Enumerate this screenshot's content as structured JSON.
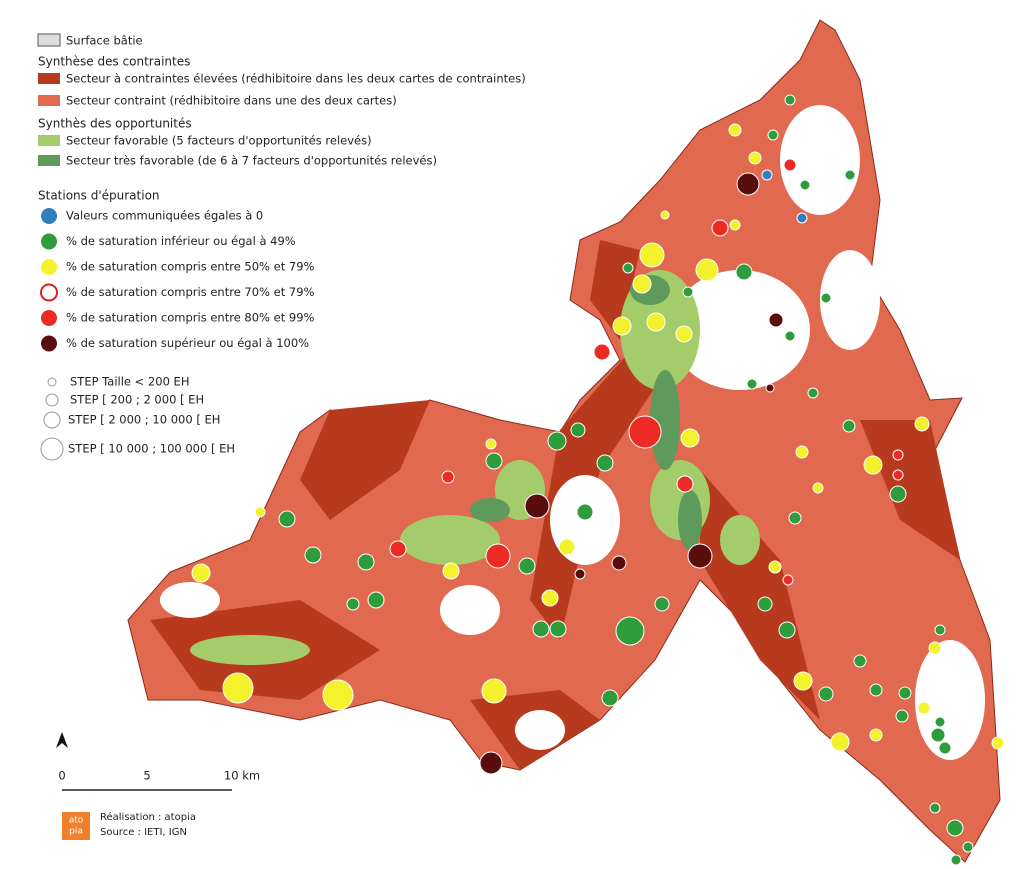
{
  "legend": {
    "built": "Surface bâtie",
    "constraints": {
      "title": "Synthèse des contraintes",
      "items": [
        "Secteur à contraintes élevées (rédhibitoire dans les deux cartes de contraintes)",
        "Secteur contraint (rédhibitoire dans une des deux cartes)"
      ]
    },
    "opportunities": {
      "title": "Synthès des opportunités",
      "items": [
        "Secteur favorable (5 facteurs d'opportunités relevés)",
        "Secteur très favorable (de 6 à 7 facteurs d'opportunités relevés)"
      ]
    },
    "stations": {
      "title": "Stations d'épuration",
      "items": [
        "Valeurs communiquées égales à 0",
        "% de saturation inférieur ou égal à 49%",
        "% de saturation compris entre 50% et 79%",
        "% de saturation compris entre 70% et 79%",
        "% de saturation compris entre 80% et 99%",
        "% de saturation supérieur ou égal à 100%"
      ]
    },
    "sizes": [
      "STEP Taille < 200 EH",
      "STEP [ 200 ; 2 000 [ EH",
      "STEP [ 2 000 ; 10 000 [ EH",
      "STEP [ 10 000 ; 100 000 [ EH"
    ]
  },
  "scale": {
    "labels": [
      "0",
      "5",
      "10 km"
    ]
  },
  "credits": {
    "logo": [
      "ato",
      "pia"
    ],
    "lines": [
      "Réalisation : atopia",
      "Source : IETI, IGN"
    ]
  }
}
